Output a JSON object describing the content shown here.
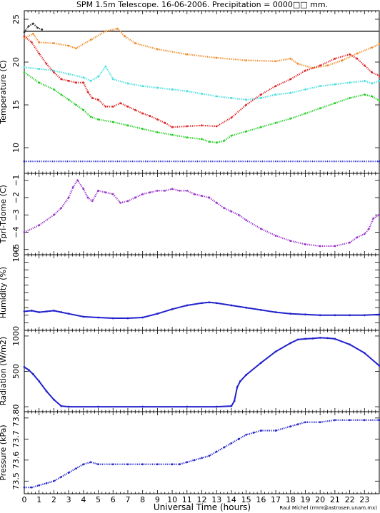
{
  "title": "SPM 1.5m Telescope. 16-06-2006. Precipitation = 0000□□ mm.",
  "credit": "Raul Michel (rmm@astrosen.unam.mx)",
  "xlabel": "Universal Time (hours)",
  "chart_data": [
    {
      "type": "scatter",
      "ylabel": "Temperature (C)",
      "xlim": [
        0,
        24
      ],
      "ylim": [
        7,
        26
      ],
      "yticks": [
        10,
        15,
        20,
        25
      ],
      "xtick_labels": [
        "0",
        "1",
        "2",
        "3",
        "4",
        "5",
        "6",
        "7",
        "8",
        "9",
        "10",
        "11",
        "12",
        "13",
        "14",
        "15",
        "16",
        "17",
        "18",
        "19",
        "20",
        "21",
        "22",
        "23"
      ],
      "hlines": [
        {
          "y": 23.6,
          "color": "#222222"
        }
      ],
      "series": [
        {
          "color": "#ee8822",
          "x": [
            0,
            0.6,
            1.0,
            2.0,
            3.0,
            3.5,
            4.5,
            5.5,
            6.3,
            6.8,
            7.5,
            9,
            11,
            13,
            15,
            17,
            18,
            18.5,
            19.5,
            20.5,
            21.5,
            22.5,
            23.5,
            24
          ],
          "y": [
            22.8,
            23.3,
            22.3,
            22.2,
            21.9,
            21.6,
            22.6,
            23.6,
            23.9,
            23.0,
            22.2,
            21.5,
            20.9,
            20.5,
            20.2,
            20.1,
            20.4,
            19.8,
            19.3,
            19.6,
            20.2,
            21.0,
            21.7,
            22.1
          ]
        },
        {
          "color": "#44dddd",
          "x": [
            0,
            1,
            2,
            3,
            4,
            4.5,
            5,
            5.5,
            6,
            7,
            8,
            9,
            10,
            11,
            12,
            13,
            14,
            15,
            16,
            17,
            18,
            19,
            20,
            21,
            22,
            23,
            23.5,
            24
          ],
          "y": [
            19.4,
            19.2,
            19.0,
            18.6,
            18.2,
            17.8,
            18.3,
            19.5,
            18.0,
            17.5,
            17.2,
            17.0,
            16.8,
            16.6,
            16.3,
            16.0,
            15.8,
            15.6,
            15.8,
            16.2,
            16.4,
            16.8,
            17.2,
            17.4,
            17.6,
            17.8,
            17.5,
            17.8
          ]
        },
        {
          "color": "#dd2222",
          "x": [
            0,
            0.5,
            1,
            1.5,
            2,
            2.5,
            3,
            3.5,
            4,
            4.3,
            4.6,
            5,
            5.5,
            6,
            6.5,
            7,
            7.5,
            8,
            8.5,
            9,
            9.5,
            10,
            11,
            12,
            13,
            14,
            15,
            16,
            17,
            18,
            19,
            20,
            21,
            22,
            22.5,
            23,
            23.5,
            24
          ],
          "y": [
            23.0,
            22.3,
            21.0,
            19.8,
            18.8,
            18.0,
            17.8,
            17.6,
            17.6,
            16.5,
            15.8,
            15.6,
            14.8,
            14.8,
            15.2,
            14.8,
            14.4,
            14.0,
            13.7,
            13.3,
            12.9,
            12.4,
            12.5,
            12.6,
            12.5,
            13.5,
            15.0,
            16.2,
            17.2,
            18.0,
            19.0,
            19.6,
            20.4,
            20.9,
            20.4,
            19.6,
            18.8,
            18.4
          ]
        },
        {
          "color": "#22cc22",
          "x": [
            0,
            1,
            2,
            2.5,
            3,
            3.5,
            4,
            4.5,
            5,
            6,
            7,
            8,
            9,
            10,
            11,
            12,
            12.5,
            13,
            13.5,
            14,
            15,
            16,
            17,
            18,
            19,
            20,
            21,
            22,
            23,
            23.5,
            24
          ],
          "y": [
            18.8,
            17.6,
            16.8,
            16.2,
            15.6,
            15.0,
            14.4,
            13.6,
            13.3,
            13.0,
            12.6,
            12.2,
            11.8,
            11.5,
            11.2,
            11.0,
            10.7,
            10.6,
            10.8,
            11.4,
            11.9,
            12.4,
            12.9,
            13.4,
            14.0,
            14.6,
            15.2,
            15.8,
            16.2,
            16.0,
            15.5
          ]
        },
        {
          "color": "#2222cc",
          "x": [
            0,
            24
          ],
          "y": [
            8.4,
            8.4
          ]
        },
        {
          "color": "#333333",
          "x": [
            0,
            0.3,
            0.6,
            0.9,
            1.2
          ],
          "y": [
            23.5,
            24.2,
            24.5,
            24.0,
            23.8
          ]
        }
      ]
    },
    {
      "type": "scatter",
      "ylabel": "Tpri-Tdome (C)",
      "xlim": [
        0,
        24
      ],
      "ylim": [
        -5.3,
        -0.6
      ],
      "yticks": [
        -5,
        -4,
        -3,
        -2,
        -1
      ],
      "ytick_labels": [
        "−5",
        "−4",
        "−3",
        "−2",
        "−1"
      ],
      "series": [
        {
          "color": "#9933cc",
          "x": [
            0,
            1,
            2,
            2.5,
            3,
            3.3,
            3.6,
            4,
            4.3,
            4.6,
            5,
            5.5,
            6,
            6.5,
            7,
            7.5,
            8,
            8.5,
            9,
            9.5,
            10,
            10.5,
            11,
            11.5,
            12,
            12.5,
            13,
            13.5,
            14,
            14.5,
            15,
            16,
            17,
            18,
            19,
            20,
            21,
            22,
            22.5,
            23,
            23.3,
            23.6,
            24
          ],
          "y": [
            -4.0,
            -3.6,
            -3.0,
            -2.6,
            -2.0,
            -1.4,
            -1.0,
            -1.5,
            -2.0,
            -2.2,
            -1.6,
            -1.7,
            -1.8,
            -2.3,
            -2.2,
            -2.0,
            -1.8,
            -1.7,
            -1.6,
            -1.6,
            -1.5,
            -1.6,
            -1.6,
            -1.8,
            -1.9,
            -2.0,
            -2.3,
            -2.6,
            -2.8,
            -3.0,
            -3.3,
            -3.8,
            -4.2,
            -4.5,
            -4.7,
            -4.8,
            -4.8,
            -4.6,
            -4.3,
            -4.1,
            -3.8,
            -3.2,
            -3.0
          ]
        }
      ]
    },
    {
      "type": "line",
      "ylabel": "Humidity (%)",
      "xlim": [
        0,
        24
      ],
      "ylim": [
        0,
        100
      ],
      "yticks": [
        0,
        10,
        20,
        30,
        40,
        50,
        60,
        70,
        80,
        90,
        100
      ],
      "ytick_labels": [
        "",
        "",
        "",
        "",
        "",
        "",
        "",
        "",
        "",
        "",
        "100"
      ],
      "series": [
        {
          "color": "#2222cc",
          "x": [
            0,
            0.5,
            1,
            1.5,
            2,
            2.5,
            3,
            4,
            5,
            6,
            7,
            8,
            9,
            10,
            11,
            12,
            12.5,
            13,
            14,
            15,
            16,
            17,
            18,
            19,
            20,
            21,
            22,
            23,
            24
          ],
          "y": [
            25,
            26,
            24,
            25,
            26,
            24,
            22,
            18,
            17,
            16,
            16,
            17,
            22,
            28,
            33,
            36,
            37,
            36,
            33,
            30,
            27,
            24,
            22,
            21,
            20,
            20,
            20,
            20,
            21
          ]
        }
      ]
    },
    {
      "type": "line",
      "ylabel": "Radiation (W/m2)",
      "xlim": [
        0,
        24
      ],
      "ylim": [
        -70,
        1080
      ],
      "yticks": [
        0,
        500,
        1000
      ],
      "series": [
        {
          "color": "#2222cc",
          "x": [
            0,
            0.3,
            0.6,
            1,
            1.5,
            2,
            2.5,
            3,
            5,
            8,
            11,
            13,
            14,
            14.2,
            14.4,
            14.6,
            15,
            16,
            17,
            18,
            18.5,
            19,
            19.5,
            20,
            20.5,
            21,
            22,
            23,
            24
          ],
          "y": [
            560,
            520,
            460,
            360,
            220,
            100,
            10,
            0,
            0,
            0,
            0,
            0,
            10,
            80,
            280,
            360,
            450,
            620,
            780,
            900,
            950,
            960,
            965,
            975,
            970,
            960,
            880,
            760,
            580
          ]
        }
      ]
    },
    {
      "type": "scatter",
      "ylabel": "Pressure (kPa)",
      "xlim": [
        0,
        24
      ],
      "ylim": [
        73.44,
        73.83
      ],
      "yticks": [
        73.5,
        73.6,
        73.7,
        73.8
      ],
      "ytick_labels": [
        "73.5",
        "73.6",
        "73.7",
        "73.8"
      ],
      "series": [
        {
          "color": "#2222cc",
          "x": [
            0,
            0.5,
            1,
            1.5,
            2,
            2.5,
            3,
            3.5,
            4,
            4.5,
            5,
            6,
            7,
            8,
            9,
            10,
            10.5,
            11,
            11.5,
            12,
            12.5,
            13,
            13.5,
            14,
            14.5,
            15,
            15.5,
            16,
            17,
            18,
            18.5,
            19,
            20,
            21,
            22,
            23,
            24
          ],
          "y": [
            73.47,
            73.47,
            73.48,
            73.49,
            73.5,
            73.52,
            73.54,
            73.56,
            73.58,
            73.59,
            73.58,
            73.58,
            73.58,
            73.58,
            73.58,
            73.58,
            73.58,
            73.59,
            73.6,
            73.61,
            73.62,
            73.64,
            73.66,
            73.68,
            73.7,
            73.72,
            73.73,
            73.74,
            73.74,
            73.76,
            73.77,
            73.78,
            73.78,
            73.79,
            73.79,
            73.79,
            73.79
          ]
        }
      ]
    }
  ]
}
